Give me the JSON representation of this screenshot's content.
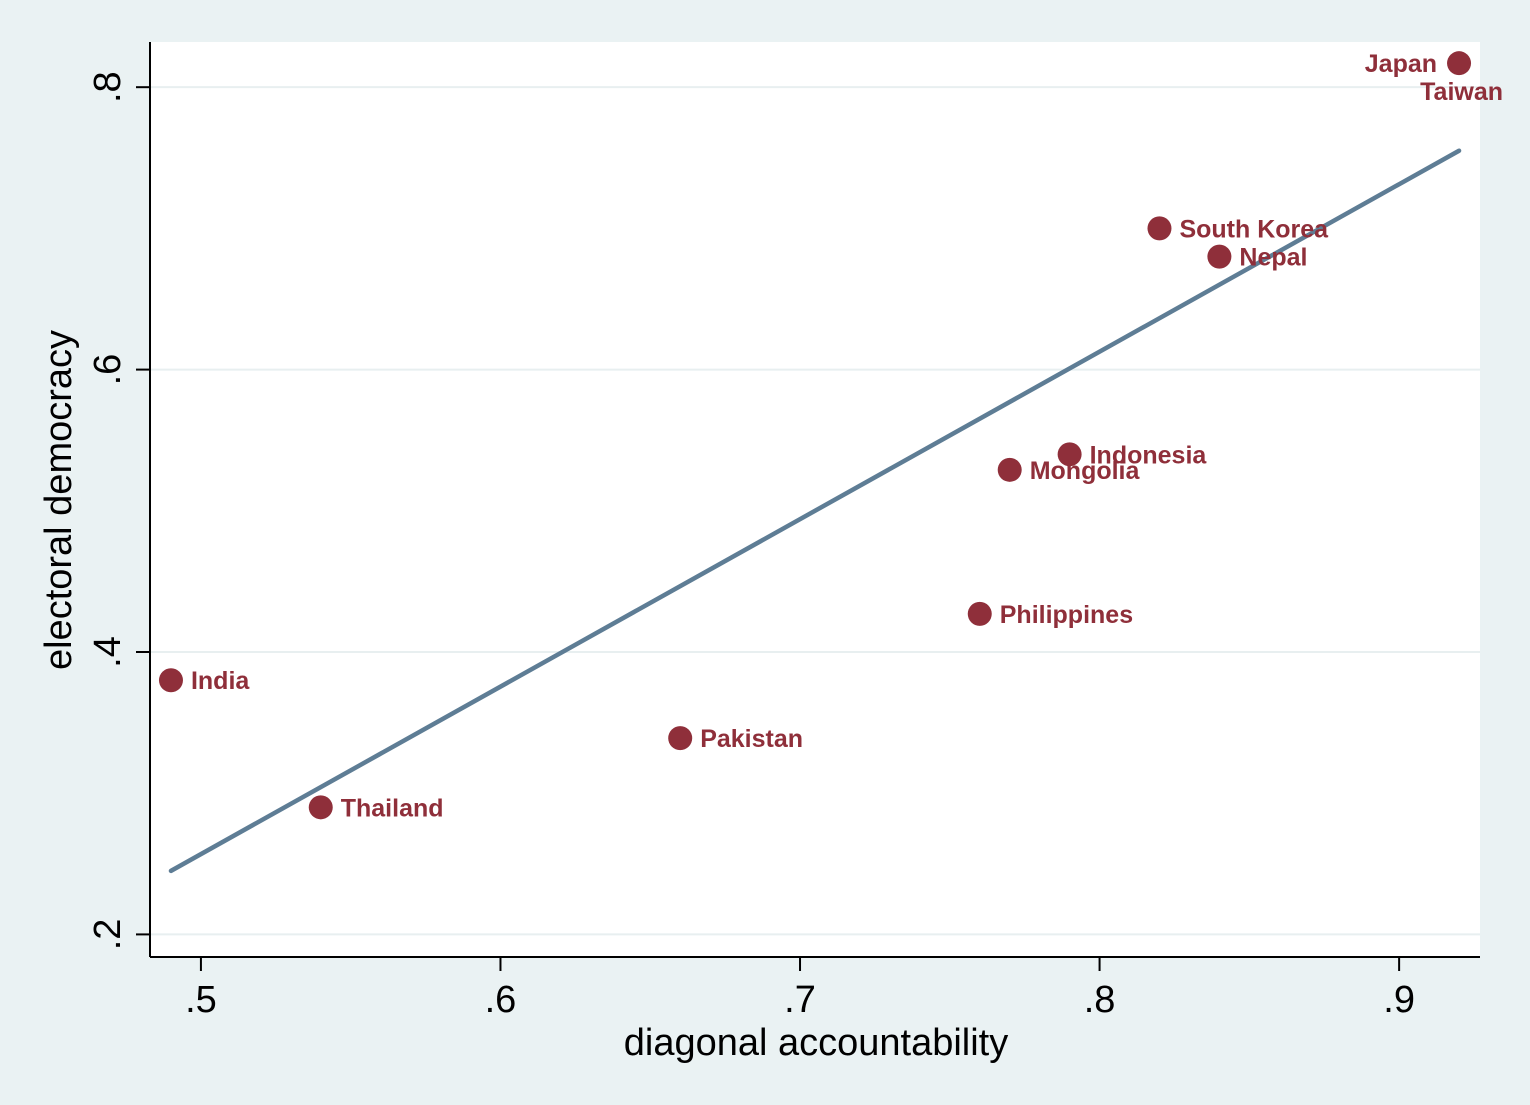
{
  "chart_data": {
    "type": "scatter",
    "xlabel": "diagonal accountability",
    "ylabel": "electoral democracy",
    "xlim": [
      0.483,
      0.927
    ],
    "ylim": [
      0.184,
      0.832
    ],
    "x_ticks": [
      0.5,
      0.6,
      0.7,
      0.8,
      0.9
    ],
    "x_tick_labels": [
      ".5",
      ".6",
      ".7",
      ".8",
      ".9"
    ],
    "y_ticks": [
      0.2,
      0.4,
      0.6,
      0.8
    ],
    "y_tick_labels": [
      ".2",
      ".4",
      ".6",
      ".8"
    ],
    "grid": "horizontal",
    "colors": {
      "page_background": "#eaf2f3",
      "plot_background": "#ffffff",
      "marker": "#8f2f3a",
      "fit_line": "#5e7d95",
      "grid": "#e8eff0"
    },
    "points": [
      {
        "label": "Japan",
        "x": 0.92,
        "y": 0.817,
        "label_pos": "left"
      },
      {
        "label": "Taiwan",
        "x": 0.92,
        "y": 0.817,
        "label_pos": "below-left"
      },
      {
        "label": "South Korea",
        "x": 0.82,
        "y": 0.7,
        "label_pos": "right"
      },
      {
        "label": "Nepal",
        "x": 0.84,
        "y": 0.68,
        "label_pos": "right"
      },
      {
        "label": "Indonesia",
        "x": 0.79,
        "y": 0.54,
        "label_pos": "right"
      },
      {
        "label": "Mongolia",
        "x": 0.77,
        "y": 0.529,
        "label_pos": "right"
      },
      {
        "label": "Philippines",
        "x": 0.76,
        "y": 0.427,
        "label_pos": "right"
      },
      {
        "label": "India",
        "x": 0.49,
        "y": 0.38,
        "label_pos": "right"
      },
      {
        "label": "Pakistan",
        "x": 0.66,
        "y": 0.339,
        "label_pos": "right"
      },
      {
        "label": "Thailand",
        "x": 0.54,
        "y": 0.29,
        "label_pos": "right"
      }
    ],
    "fit_line": {
      "x": [
        0.49,
        0.92
      ],
      "y": [
        0.245,
        0.755
      ]
    }
  }
}
